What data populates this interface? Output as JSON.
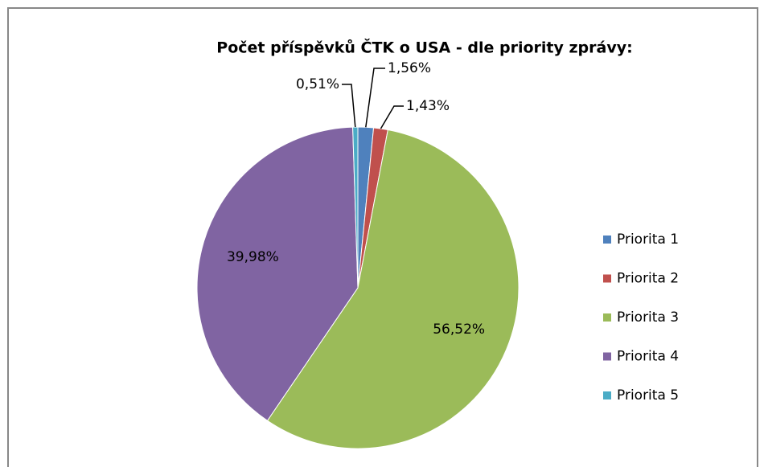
{
  "chart_data": {
    "type": "pie",
    "title": "Počet příspěvků ČTK o USA - dle priority zprávy:",
    "categories": [
      "Priorita 1",
      "Priorita 2",
      "Priorita 3",
      "Priorita 4",
      "Priorita 5"
    ],
    "values": [
      1.56,
      1.43,
      56.52,
      39.98,
      0.51
    ],
    "value_labels": [
      "1,56%",
      "1,43%",
      "56,52%",
      "39,98%",
      "0,51%"
    ],
    "colors": [
      "#4f81bd",
      "#c0504d",
      "#9bbb59",
      "#8064a2",
      "#4bacc6"
    ],
    "legend": "right"
  }
}
